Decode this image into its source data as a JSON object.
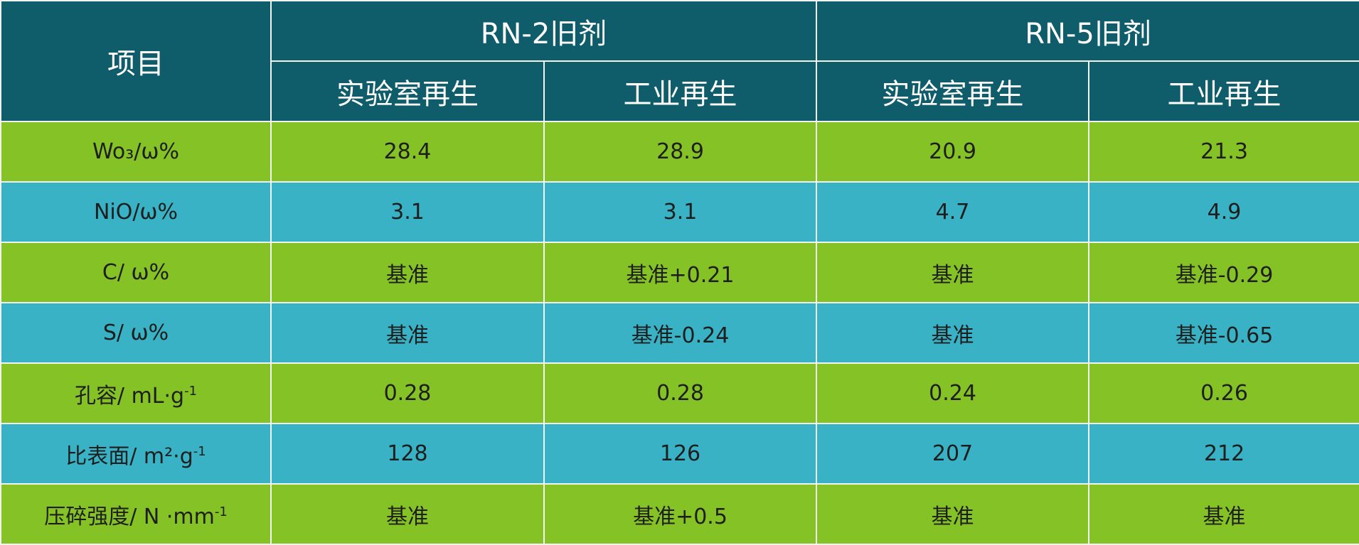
{
  "header": {
    "item_label": "项目",
    "groups": [
      "RN-2旧剂",
      "RN-5旧剂"
    ],
    "subheaders": [
      "实验室再生",
      "工业再生",
      "实验室再生",
      "工业再生"
    ]
  },
  "colors": {
    "header": "#0f5c6b",
    "row_green": "#85c226",
    "row_blue": "#38b2c4"
  },
  "rows": [
    {
      "label": "Wo₃/ω%",
      "values": [
        "28.4",
        "28.9",
        "20.9",
        "21.3"
      ]
    },
    {
      "label": "NiO/ω%",
      "values": [
        "3.1",
        "3.1",
        "4.7",
        "4.9"
      ]
    },
    {
      "label": "C/  ω%",
      "values": [
        "基准",
        "基准+0.21",
        "基准",
        "基准-0.29"
      ]
    },
    {
      "label": "S/  ω%",
      "values": [
        "基准",
        "基准-0.24",
        "基准",
        "基准-0.65"
      ]
    },
    {
      "label": "孔容/  mL·g",
      "sup": "-1",
      "values": [
        "0.28",
        "0.28",
        "0.24",
        "0.26"
      ]
    },
    {
      "label": "比表面/  m²·g",
      "sup": "-1",
      "values": [
        "128",
        "126",
        "207",
        "212"
      ]
    },
    {
      "label": "压碎强度/  N ·mm",
      "sup": "-1",
      "values": [
        "基准",
        "基准+0.5",
        "基准",
        "基准"
      ]
    }
  ]
}
